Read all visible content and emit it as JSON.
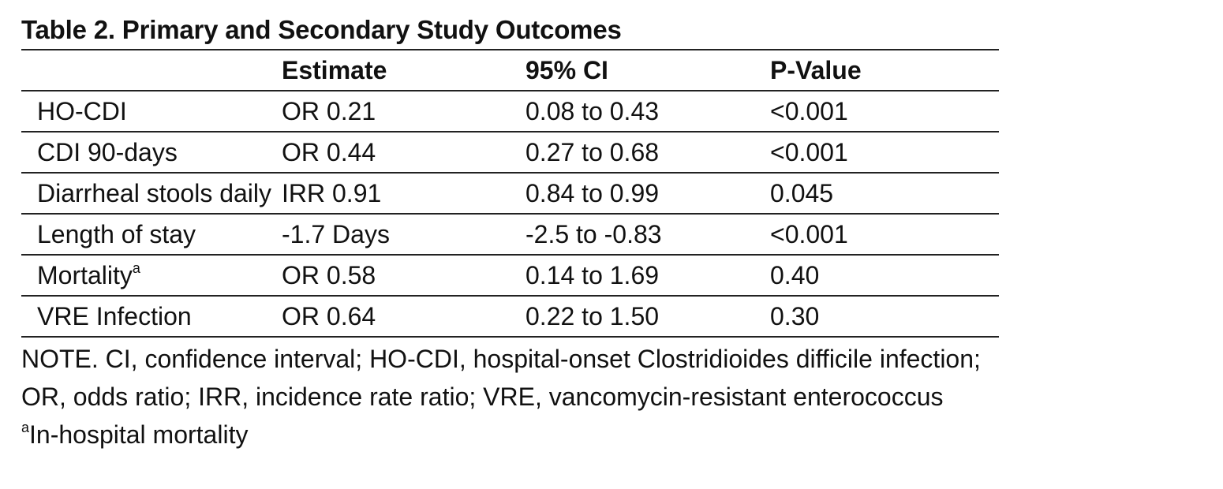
{
  "title": "Table 2. Primary and Secondary Study Outcomes",
  "columns": [
    "",
    "Estimate",
    "95% CI",
    "P-Value"
  ],
  "rows": [
    {
      "outcome": "HO-CDI",
      "sup": "",
      "estimate": "OR 0.21",
      "ci": "0.08 to 0.43",
      "p": "<0.001"
    },
    {
      "outcome": "CDI 90-days",
      "sup": "",
      "estimate": "OR 0.44",
      "ci": "0.27 to 0.68",
      "p": "<0.001"
    },
    {
      "outcome": "Diarrheal stools daily",
      "sup": "",
      "estimate": "IRR 0.91",
      "ci": "0.84 to 0.99",
      "p": "0.045"
    },
    {
      "outcome": "Length of stay",
      "sup": "",
      "estimate": "-1.7 Days",
      "ci": "-2.5 to -0.83",
      "p": "<0.001"
    },
    {
      "outcome": "Mortality",
      "sup": "a",
      "estimate": "OR 0.58",
      "ci": "0.14 to 1.69",
      "p": "0.40"
    },
    {
      "outcome": "VRE Infection",
      "sup": "",
      "estimate": "OR 0.64",
      "ci": "0.22 to 1.50",
      "p": "0.30"
    }
  ],
  "notes": {
    "line1": "NOTE. CI, confidence interval; HO-CDI, hospital-onset Clostridioides difficile infection;",
    "line2": "OR, odds ratio; IRR, incidence rate ratio; VRE, vancomycin-resistant enterococcus",
    "footnote_marker": "a",
    "footnote_text": "In-hospital mortality"
  }
}
